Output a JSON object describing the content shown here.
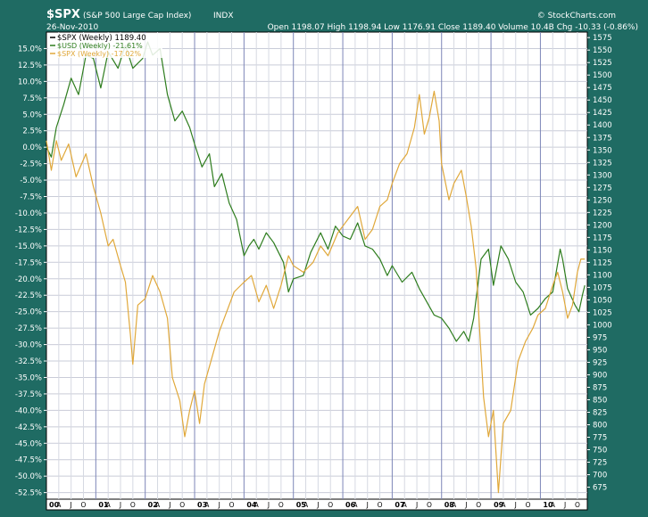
{
  "chart_data": {
    "type": "line",
    "header": {
      "symbol": "$SPX",
      "name": "(S&P 500 Large Cap Index)",
      "exchange": "INDX",
      "date": "26-Nov-2010",
      "ohlc_text": "Open 1198.07  High 1198.94  Low 1176.91  Close 1189.40  Volume 10.4B  Chg -10.33 (-0.86%)",
      "watermark": "© StockCharts.com"
    },
    "legend": [
      {
        "text": "$SPX (Weekly) 1189.40",
        "color": "#000000"
      },
      {
        "text": "$USD (Weekly) -21.61%",
        "color": "#2e7d1e"
      },
      {
        "text": "$SPX (Weekly) -17.02%",
        "color": "#e0a83a"
      }
    ],
    "legend_placement": "top-left",
    "grid": true,
    "left_axis": {
      "unit": "percent",
      "range": [
        -53.5,
        17.5
      ],
      "ticks": [
        "15.0%",
        "12.5%",
        "10.0%",
        "7.5%",
        "5.0%",
        "2.5%",
        "0.0%",
        "-2.5%",
        "-5.0%",
        "-7.5%",
        "-10.0%",
        "-12.5%",
        "-15.0%",
        "-17.5%",
        "-20.0%",
        "-22.5%",
        "-25.0%",
        "-27.5%",
        "-30.0%",
        "-32.5%",
        "-35.0%",
        "-37.5%",
        "-40.0%",
        "-42.5%",
        "-45.0%",
        "-47.5%",
        "-50.0%",
        "-52.5%"
      ]
    },
    "right_axis": {
      "range": [
        651,
        1586
      ],
      "ticks": [
        "1575",
        "1550",
        "1525",
        "1500",
        "1475",
        "1450",
        "1425",
        "1400",
        "1375",
        "1350",
        "1325",
        "1300",
        "1275",
        "1250",
        "1225",
        "1200",
        "1175",
        "1150",
        "1125",
        "1100",
        "1075",
        "1050",
        "1025",
        "1000",
        "975",
        "950",
        "925",
        "900",
        "875",
        "850",
        "825",
        "800",
        "775",
        "750",
        "725",
        "700",
        "675"
      ]
    },
    "x_axis": {
      "range": [
        2000.0,
        2010.95
      ],
      "year_labels": [
        "00",
        "01",
        "02",
        "03",
        "04",
        "05",
        "06",
        "07",
        "08",
        "09",
        "10"
      ],
      "month_labels": [
        "A",
        "J",
        "O"
      ]
    },
    "series": [
      {
        "name": "$USD (Weekly)",
        "color": "#2e7d1e",
        "points": [
          [
            2000.0,
            0.0
          ],
          [
            2000.1,
            -1.5
          ],
          [
            2000.2,
            3.0
          ],
          [
            2000.35,
            6.5
          ],
          [
            2000.5,
            10.5
          ],
          [
            2000.65,
            8.0
          ],
          [
            2000.8,
            14.0
          ],
          [
            2000.95,
            13.5
          ],
          [
            2001.1,
            9.0
          ],
          [
            2001.25,
            14.5
          ],
          [
            2001.45,
            12.0
          ],
          [
            2001.6,
            15.5
          ],
          [
            2001.75,
            12.0
          ],
          [
            2001.95,
            13.5
          ],
          [
            2002.05,
            16.0
          ],
          [
            2002.15,
            14.0
          ],
          [
            2002.3,
            15.0
          ],
          [
            2002.45,
            8.0
          ],
          [
            2002.6,
            4.0
          ],
          [
            2002.75,
            5.5
          ],
          [
            2002.9,
            3.0
          ],
          [
            2003.0,
            0.5
          ],
          [
            2003.15,
            -3.0
          ],
          [
            2003.3,
            -1.0
          ],
          [
            2003.4,
            -6.0
          ],
          [
            2003.55,
            -4.0
          ],
          [
            2003.7,
            -8.5
          ],
          [
            2003.85,
            -11.0
          ],
          [
            2004.0,
            -16.5
          ],
          [
            2004.1,
            -15.0
          ],
          [
            2004.2,
            -14.0
          ],
          [
            2004.3,
            -15.5
          ],
          [
            2004.45,
            -13.0
          ],
          [
            2004.6,
            -14.5
          ],
          [
            2004.8,
            -17.5
          ],
          [
            2004.9,
            -22.0
          ],
          [
            2005.0,
            -20.0
          ],
          [
            2005.2,
            -19.5
          ],
          [
            2005.35,
            -16.0
          ],
          [
            2005.55,
            -13.0
          ],
          [
            2005.7,
            -15.5
          ],
          [
            2005.85,
            -12.0
          ],
          [
            2006.0,
            -13.5
          ],
          [
            2006.15,
            -14.0
          ],
          [
            2006.3,
            -11.5
          ],
          [
            2006.45,
            -15.0
          ],
          [
            2006.6,
            -15.5
          ],
          [
            2006.75,
            -17.0
          ],
          [
            2006.9,
            -19.5
          ],
          [
            2007.0,
            -18.0
          ],
          [
            2007.2,
            -20.5
          ],
          [
            2007.4,
            -19.0
          ],
          [
            2007.55,
            -21.5
          ],
          [
            2007.7,
            -23.5
          ],
          [
            2007.85,
            -25.5
          ],
          [
            2008.0,
            -26.0
          ],
          [
            2008.15,
            -27.5
          ],
          [
            2008.3,
            -29.5
          ],
          [
            2008.45,
            -28.0
          ],
          [
            2008.55,
            -29.5
          ],
          [
            2008.65,
            -26.0
          ],
          [
            2008.8,
            -17.0
          ],
          [
            2008.95,
            -15.5
          ],
          [
            2009.05,
            -21.0
          ],
          [
            2009.2,
            -15.0
          ],
          [
            2009.35,
            -17.0
          ],
          [
            2009.5,
            -20.5
          ],
          [
            2009.65,
            -22.0
          ],
          [
            2009.8,
            -25.5
          ],
          [
            2009.95,
            -24.5
          ],
          [
            2010.1,
            -23.0
          ],
          [
            2010.25,
            -22.0
          ],
          [
            2010.4,
            -15.5
          ],
          [
            2010.45,
            -17.0
          ],
          [
            2010.55,
            -21.5
          ],
          [
            2010.7,
            -24.0
          ],
          [
            2010.78,
            -25.0
          ],
          [
            2010.85,
            -22.5
          ],
          [
            2010.9,
            -21.0
          ]
        ]
      },
      {
        "name": "$SPX (Weekly)",
        "color": "#e0a83a",
        "points": [
          [
            2000.0,
            1.0
          ],
          [
            2000.1,
            -3.5
          ],
          [
            2000.2,
            1.0
          ],
          [
            2000.3,
            -2.0
          ],
          [
            2000.45,
            0.5
          ],
          [
            2000.6,
            -4.5
          ],
          [
            2000.8,
            -1.0
          ],
          [
            2000.95,
            -6.0
          ],
          [
            2001.1,
            -10.0
          ],
          [
            2001.25,
            -15.0
          ],
          [
            2001.35,
            -14.0
          ],
          [
            2001.5,
            -18.0
          ],
          [
            2001.6,
            -20.5
          ],
          [
            2001.7,
            -28.5
          ],
          [
            2001.75,
            -33.0
          ],
          [
            2001.85,
            -24.0
          ],
          [
            2002.0,
            -23.0
          ],
          [
            2002.15,
            -19.5
          ],
          [
            2002.3,
            -22.0
          ],
          [
            2002.45,
            -26.0
          ],
          [
            2002.55,
            -35.0
          ],
          [
            2002.7,
            -38.5
          ],
          [
            2002.8,
            -44.0
          ],
          [
            2002.9,
            -40.0
          ],
          [
            2003.0,
            -37.0
          ],
          [
            2003.1,
            -42.0
          ],
          [
            2003.2,
            -36.0
          ],
          [
            2003.35,
            -32.0
          ],
          [
            2003.5,
            -28.0
          ],
          [
            2003.65,
            -25.0
          ],
          [
            2003.8,
            -22.0
          ],
          [
            2004.0,
            -20.5
          ],
          [
            2004.15,
            -19.5
          ],
          [
            2004.3,
            -23.5
          ],
          [
            2004.45,
            -21.0
          ],
          [
            2004.6,
            -24.5
          ],
          [
            2004.75,
            -21.0
          ],
          [
            2004.9,
            -16.5
          ],
          [
            2005.0,
            -18.0
          ],
          [
            2005.2,
            -19.0
          ],
          [
            2005.4,
            -17.5
          ],
          [
            2005.55,
            -15.0
          ],
          [
            2005.7,
            -16.5
          ],
          [
            2005.9,
            -13.0
          ],
          [
            2006.0,
            -12.0
          ],
          [
            2006.15,
            -10.5
          ],
          [
            2006.3,
            -9.0
          ],
          [
            2006.45,
            -14.0
          ],
          [
            2006.6,
            -12.5
          ],
          [
            2006.75,
            -9.0
          ],
          [
            2006.9,
            -8.0
          ],
          [
            2007.0,
            -5.5
          ],
          [
            2007.15,
            -2.5
          ],
          [
            2007.3,
            -1.0
          ],
          [
            2007.45,
            3.0
          ],
          [
            2007.55,
            8.0
          ],
          [
            2007.65,
            2.0
          ],
          [
            2007.75,
            4.5
          ],
          [
            2007.85,
            8.5
          ],
          [
            2007.95,
            4.0
          ],
          [
            2008.0,
            -2.5
          ],
          [
            2008.15,
            -8.0
          ],
          [
            2008.25,
            -5.5
          ],
          [
            2008.4,
            -3.5
          ],
          [
            2008.5,
            -7.5
          ],
          [
            2008.6,
            -12.0
          ],
          [
            2008.7,
            -18.5
          ],
          [
            2008.78,
            -29.0
          ],
          [
            2008.85,
            -38.0
          ],
          [
            2008.95,
            -44.0
          ],
          [
            2009.05,
            -40.0
          ],
          [
            2009.15,
            -52.5
          ],
          [
            2009.25,
            -42.0
          ],
          [
            2009.4,
            -40.0
          ],
          [
            2009.55,
            -32.5
          ],
          [
            2009.7,
            -29.5
          ],
          [
            2009.85,
            -27.5
          ],
          [
            2009.95,
            -25.5
          ],
          [
            2010.1,
            -24.5
          ],
          [
            2010.25,
            -21.0
          ],
          [
            2010.35,
            -19.0
          ],
          [
            2010.45,
            -22.0
          ],
          [
            2010.55,
            -26.0
          ],
          [
            2010.65,
            -24.0
          ],
          [
            2010.75,
            -19.0
          ],
          [
            2010.82,
            -17.0
          ],
          [
            2010.9,
            -17.0
          ]
        ]
      }
    ]
  }
}
